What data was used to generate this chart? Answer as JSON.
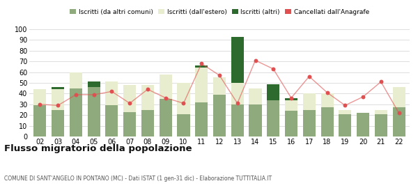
{
  "years": [
    "02",
    "03",
    "04",
    "05",
    "06",
    "07",
    "08",
    "09",
    "10",
    "11",
    "12",
    "13",
    "14",
    "15",
    "16",
    "17",
    "18",
    "19",
    "20",
    "21",
    "22"
  ],
  "iscritti_altri_comuni": [
    29,
    25,
    45,
    46,
    29,
    23,
    25,
    35,
    21,
    32,
    39,
    30,
    30,
    34,
    24,
    25,
    27,
    21,
    22,
    21,
    27
  ],
  "iscritti_estero": [
    15,
    19,
    15,
    0,
    22,
    25,
    23,
    23,
    29,
    32,
    16,
    20,
    15,
    0,
    10,
    15,
    13,
    4,
    0,
    4,
    19
  ],
  "iscritti_altri": [
    0,
    2,
    0,
    5,
    0,
    0,
    0,
    0,
    0,
    2,
    0,
    43,
    0,
    15,
    2,
    0,
    0,
    0,
    0,
    0,
    0
  ],
  "cancellati": [
    30,
    29,
    39,
    39,
    42,
    31,
    44,
    36,
    31,
    68,
    57,
    31,
    71,
    63,
    36,
    56,
    41,
    29,
    37,
    51,
    22
  ],
  "color_altri_comuni": "#8faa7c",
  "color_estero": "#e8edcf",
  "color_altri": "#2d6a2d",
  "color_cancellati": "#e05050",
  "ylim": [
    0,
    100
  ],
  "yticks": [
    0,
    10,
    20,
    30,
    40,
    50,
    60,
    70,
    80,
    90,
    100
  ],
  "title": "Flusso migratorio della popolazione",
  "subtitle": "COMUNE DI SANT'ANGELO IN PONTANO (MC) - Dati ISTAT (1 gen-31 dic) - Elaborazione TUTTITALIA.IT",
  "legend_labels": [
    "Iscritti (da altri comuni)",
    "Iscritti (dall'estero)",
    "Iscritti (altri)",
    "Cancellati dall'Anagrafe"
  ],
  "background_color": "#ffffff",
  "grid_color": "#d8d8d8"
}
